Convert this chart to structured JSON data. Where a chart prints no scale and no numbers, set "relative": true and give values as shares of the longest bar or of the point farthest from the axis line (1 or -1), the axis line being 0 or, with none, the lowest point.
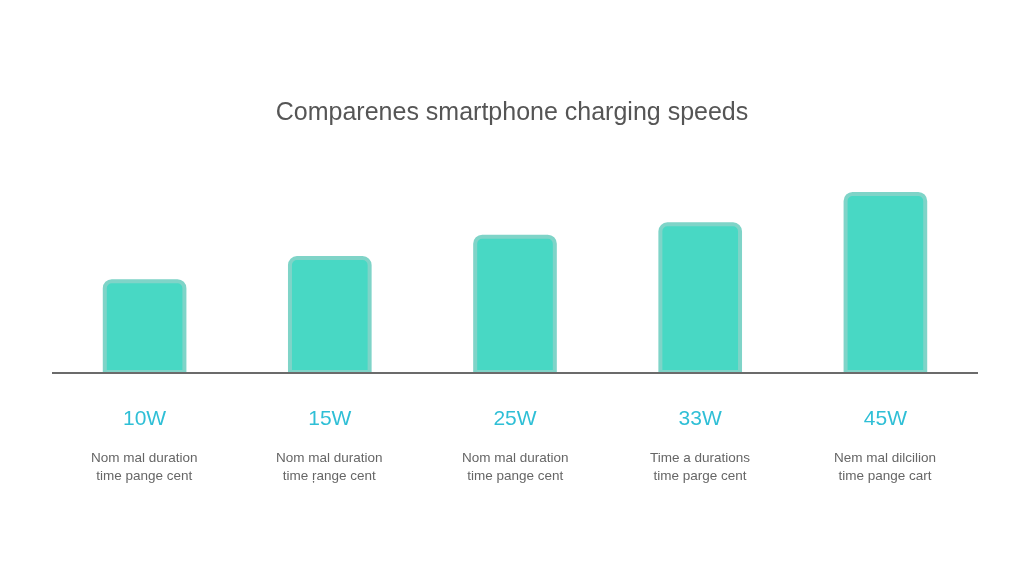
{
  "chart_data": {
    "type": "bar",
    "title": "Comparenes smartphone charging speeds",
    "categories": [
      "10W",
      "15W",
      "25W",
      "33W",
      "45W"
    ],
    "relative": true,
    "values": [
      0.51,
      0.64,
      0.76,
      0.83,
      1
    ],
    "color": "#48d8c4",
    "annotations": [
      "Nom mal duration\ntime pange cent",
      "Nom mal duration\ntime ŗange cent",
      "Nom mal duration\ntime pange cent",
      "Time a durations\ntime parge cent",
      "Nem mal dilcilion\ntime pange cart"
    ]
  }
}
